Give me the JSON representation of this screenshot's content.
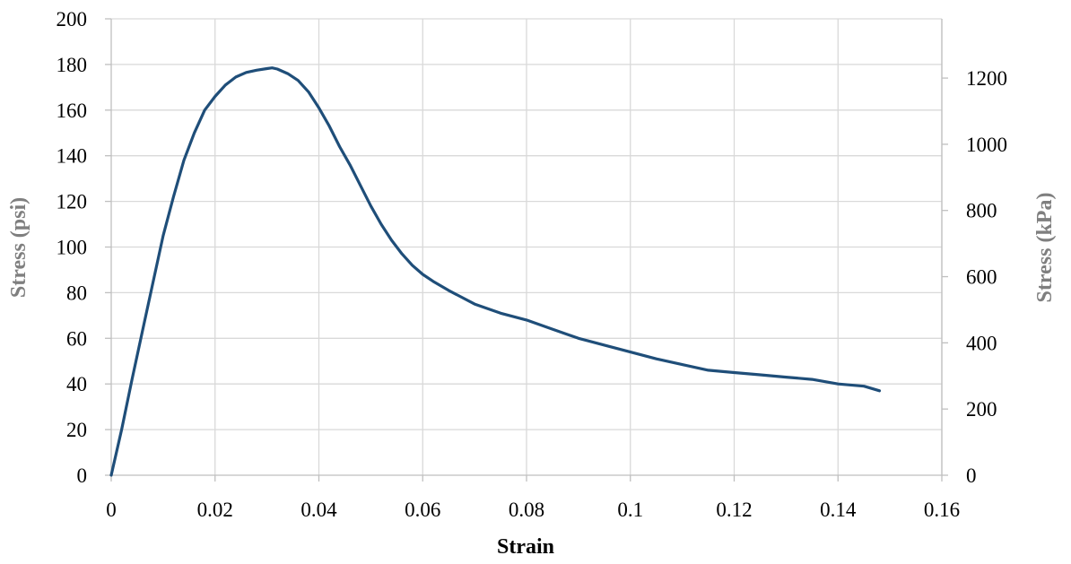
{
  "chart_data": {
    "type": "line",
    "xlabel": "Strain",
    "ylabel": "Stress (psi)",
    "y2label": "Stress (kPa)",
    "xlim": [
      0,
      0.16
    ],
    "ylim": [
      0,
      200
    ],
    "y2lim": [
      0,
      1379
    ],
    "x_ticks": [
      "0",
      "0.02",
      "0.04",
      "0.06",
      "0.08",
      "0.1",
      "0.12",
      "0.14",
      "0.16"
    ],
    "y_ticks": [
      "0",
      "20",
      "40",
      "60",
      "80",
      "100",
      "120",
      "140",
      "160",
      "180",
      "200"
    ],
    "y2_ticks": [
      "0",
      "200",
      "400",
      "600",
      "800",
      "1000",
      "1200"
    ],
    "y2_tick_values": [
      0,
      200,
      400,
      600,
      800,
      1000,
      1200
    ],
    "grid": true,
    "colors": {
      "series": "#1f4e79",
      "axis_title": "#7f7f7f"
    },
    "series": [
      {
        "x": [
          0,
          0.002,
          0.004,
          0.006,
          0.008,
          0.01,
          0.012,
          0.014,
          0.016,
          0.018,
          0.02,
          0.022,
          0.024,
          0.026,
          0.028,
          0.03,
          0.031,
          0.032,
          0.034,
          0.036,
          0.038,
          0.04,
          0.042,
          0.044,
          0.046,
          0.048,
          0.05,
          0.052,
          0.054,
          0.056,
          0.058,
          0.06,
          0.062,
          0.065,
          0.07,
          0.075,
          0.08,
          0.085,
          0.09,
          0.095,
          0.1,
          0.105,
          0.11,
          0.115,
          0.12,
          0.125,
          0.13,
          0.135,
          0.14,
          0.145,
          0.148
        ],
        "y": [
          0,
          20,
          42,
          63,
          84,
          105,
          122,
          138,
          150,
          160,
          166,
          171,
          174.5,
          176.5,
          177.5,
          178.2,
          178.5,
          178,
          176,
          173,
          168,
          161,
          153,
          144,
          136,
          127,
          118,
          110,
          103,
          97,
          92,
          88,
          85,
          81,
          75,
          71,
          68,
          64,
          60,
          57,
          54,
          51,
          48.5,
          46,
          45,
          44,
          43,
          42,
          40,
          39,
          37
        ]
      }
    ]
  }
}
